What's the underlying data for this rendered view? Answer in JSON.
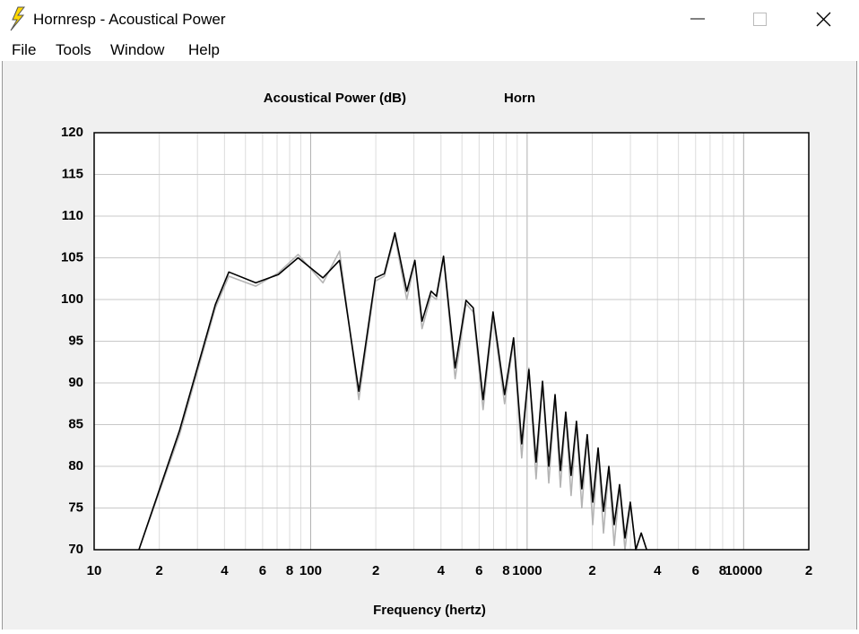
{
  "window": {
    "title": "Hornresp - Acoustical Power",
    "menu": [
      "File",
      "Tools",
      "Window",
      "Help"
    ]
  },
  "chart_data": {
    "type": "line",
    "title": "Acoustical Power (dB)",
    "subtitle": "Horn",
    "x_label": "Frequency (hertz)",
    "log_x": true,
    "grid": true,
    "xlim": [
      10,
      20000
    ],
    "ylim": [
      70,
      120
    ],
    "xticks": [
      10,
      {
        "value": 20,
        "label": "2"
      },
      {
        "value": 40,
        "label": "4"
      },
      {
        "value": 60,
        "label": "6"
      },
      {
        "value": 80,
        "label": "8"
      },
      100,
      {
        "value": 200,
        "label": "2"
      },
      {
        "value": 400,
        "label": "4"
      },
      {
        "value": 600,
        "label": "6"
      },
      {
        "value": 800,
        "label": "8"
      },
      1000,
      {
        "value": 2000,
        "label": "2"
      },
      {
        "value": 4000,
        "label": "4"
      },
      {
        "value": 6000,
        "label": "6"
      },
      {
        "value": 8000,
        "label": "8"
      },
      10000,
      {
        "value": 20000,
        "label": "2"
      }
    ],
    "yticks": [
      70,
      75,
      80,
      85,
      90,
      95,
      100,
      105,
      110,
      115,
      120
    ],
    "x": [
      16.1,
      24.8,
      36.3,
      41.9,
      55.8,
      71,
      87.5,
      114,
      136,
      167,
      199,
      219,
      245,
      278,
      303,
      327,
      360,
      381,
      411,
      465,
      522,
      564,
      626,
      696,
      787,
      866,
      944,
      1019,
      1100,
      1178,
      1259,
      1346,
      1425,
      1508,
      1596,
      1690,
      1789,
      1895,
      2009,
      2128,
      2253,
      2385,
      2524,
      2673,
      2831,
      2997,
      3177,
      3366,
      3565
    ],
    "series": [
      {
        "color": "#b4b4b4",
        "values": [
          70,
          83.8,
          99,
          102.8,
          101.6,
          103.2,
          105.4,
          102,
          105.8,
          88,
          102.2,
          102.8,
          107.6,
          100,
          104.6,
          96.5,
          100.5,
          100,
          105,
          90.5,
          99.5,
          98.5,
          86.8,
          98,
          87.5,
          95,
          81,
          91.8,
          78.5,
          90,
          78,
          88.4,
          77.5,
          86.2,
          76.5,
          85.2,
          75,
          83.6,
          73,
          82,
          72,
          79.8,
          70.5,
          77.6,
          70,
          75.5,
          70,
          72,
          70
        ]
      },
      {
        "color": "#000000",
        "values": [
          70,
          84.3,
          99.4,
          103.3,
          102,
          103,
          105,
          102.6,
          104.7,
          89,
          102.6,
          103.1,
          108,
          101,
          104.7,
          97.4,
          101,
          100.4,
          105.2,
          91.8,
          99.9,
          99,
          88,
          98.5,
          88.6,
          95.4,
          82.7,
          91.6,
          80.5,
          90.2,
          80,
          88.6,
          79.5,
          86.5,
          78.9,
          85.4,
          77.3,
          83.8,
          75.7,
          82.2,
          74.6,
          80,
          73,
          77.8,
          71.4,
          75.7,
          70,
          72,
          70
        ]
      }
    ]
  }
}
